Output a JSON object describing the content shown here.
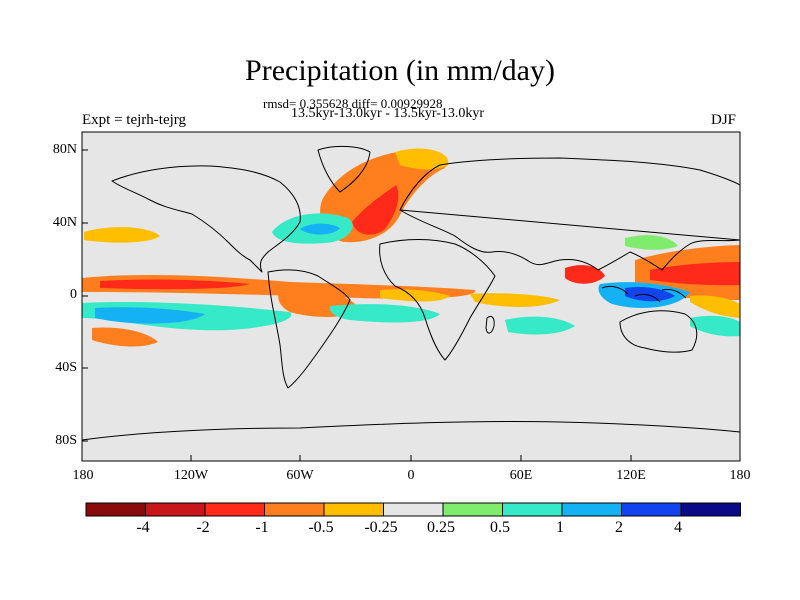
{
  "header": {
    "title": "Precipitation (in mm/day)",
    "stats": "rmsd= 0.355628 diff= 0.00929928",
    "period": "13.5kyr-13.0kyr - 13.5kyr-13.0kyr",
    "experiment": "Expt = tejrh-tejrg",
    "season": "DJF"
  },
  "axes": {
    "y_ticks": [
      "80N",
      "40N",
      "0",
      "40S",
      "80S"
    ],
    "x_ticks": [
      "180",
      "120W",
      "60W",
      "0",
      "60E",
      "120E",
      "180"
    ]
  },
  "colorbar": {
    "colors": [
      "#8a0b0b",
      "#c8161b",
      "#ff2a1a",
      "#ff7f1e",
      "#ffbf00",
      "#e6e6e6",
      "#80ec6e",
      "#36eac8",
      "#14b1f4",
      "#1144ee",
      "#0a0a88"
    ],
    "labels": [
      "-4",
      "-2",
      "-1",
      "-0.5",
      "-0.25",
      "0.25",
      "0.5",
      "1",
      "2",
      "4"
    ]
  },
  "colors": {
    "background": "#e6e6e6",
    "coastline": "#000000"
  }
}
